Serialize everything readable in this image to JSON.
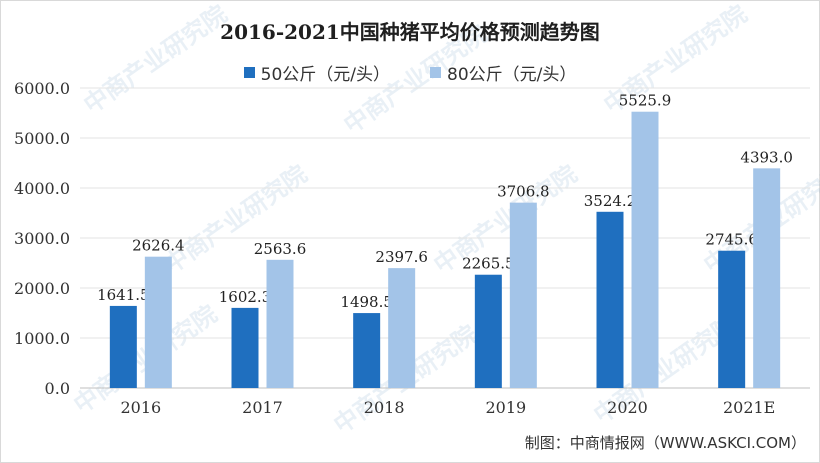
{
  "chart_data": {
    "type": "bar",
    "title": "2016-2021中国种猪平均价格预测趋势图",
    "categories": [
      "2016",
      "2017",
      "2018",
      "2019",
      "2020",
      "2021E"
    ],
    "series": [
      {
        "name": "50公斤（元/头）",
        "color": "#1f6fbf",
        "values": [
          1641.5,
          1602.3,
          1498.5,
          2265.5,
          3524.2,
          2745.6
        ],
        "labels": [
          "1641.5",
          "1602.3",
          "1498.5",
          "2265.5",
          "3524.2",
          "2745.6"
        ]
      },
      {
        "name": "80公斤（元/头）",
        "color": "#a3c4e8",
        "values": [
          2626.4,
          2563.6,
          2397.6,
          3706.8,
          5525.9,
          4393.0
        ],
        "labels": [
          "2626.4",
          "2563.6",
          "2397.6",
          "3706.8",
          "5525.9",
          "4393.0"
        ]
      }
    ],
    "yticks": [
      "0.0",
      "1000.0",
      "2000.0",
      "3000.0",
      "4000.0",
      "5000.0",
      "6000.0"
    ],
    "ylim": [
      0,
      6000
    ],
    "grid": true,
    "legend": "top-center"
  },
  "source": "制图：中商情报网（WWW.ASKCI.COM）",
  "watermark": "中商产业研究院"
}
